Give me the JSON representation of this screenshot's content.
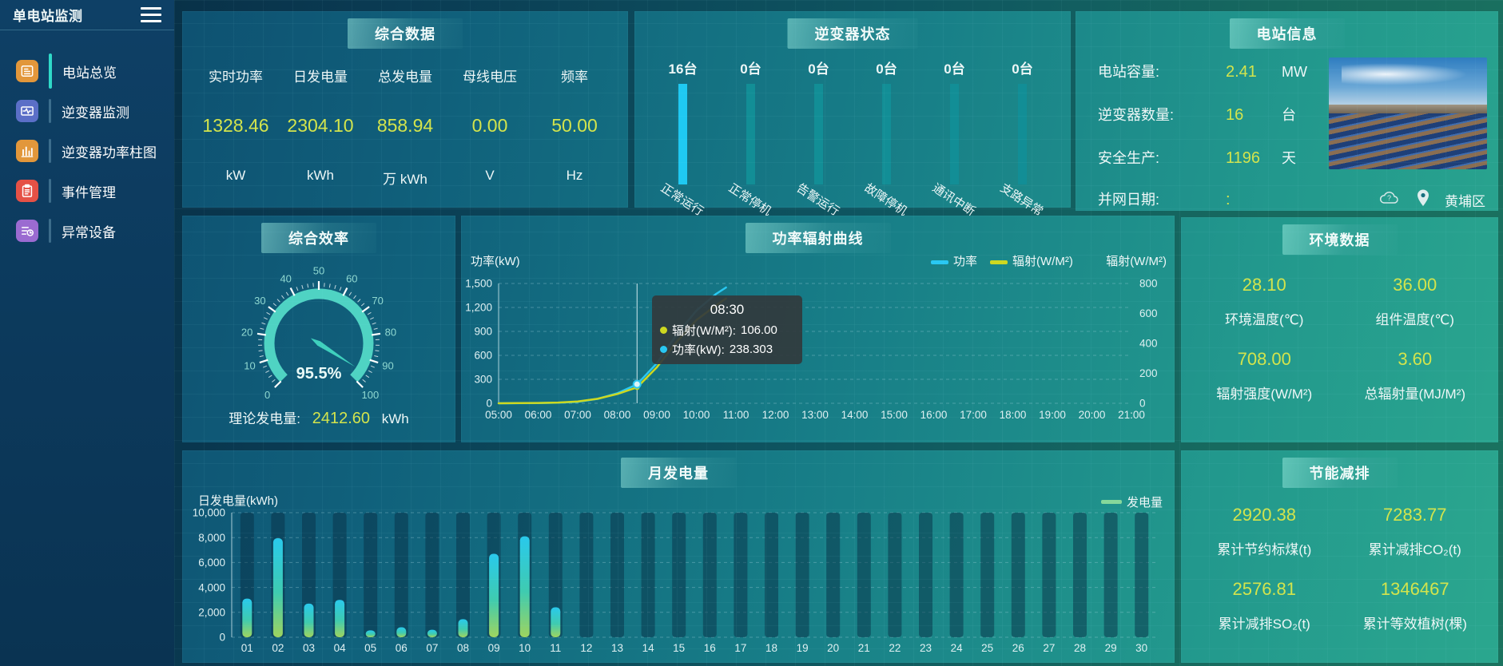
{
  "app": {
    "title": "单电站监测"
  },
  "sidebar": {
    "items": [
      {
        "label": "电站总览",
        "icon": "station-overview-icon",
        "icon_color": "#e2973b",
        "active": true
      },
      {
        "label": "逆变器监测",
        "icon": "inverter-monitor-icon",
        "icon_color": "#5b6fc7",
        "active": false
      },
      {
        "label": "逆变器功率柱图",
        "icon": "inverter-power-bars-icon",
        "icon_color": "#e2973b",
        "active": false
      },
      {
        "label": "事件管理",
        "icon": "event-management-icon",
        "icon_color": "#e55146",
        "active": false
      },
      {
        "label": "异常设备",
        "icon": "abnormal-devices-icon",
        "icon_color": "#9b6bd1",
        "active": false
      }
    ]
  },
  "panels": {
    "summary": {
      "title": "综合数据",
      "metrics": [
        {
          "label": "实时功率",
          "value": "1328.46",
          "unit": "kW"
        },
        {
          "label": "日发电量",
          "value": "2304.10",
          "unit": "kWh"
        },
        {
          "label": "总发电量",
          "value": "858.94",
          "unit": "万 kWh"
        },
        {
          "label": "母线电压",
          "value": "0.00",
          "unit": "V"
        },
        {
          "label": "频率",
          "value": "50.00",
          "unit": "Hz"
        }
      ]
    },
    "inverter_status": {
      "title": "逆变器状态"
    },
    "station_info": {
      "title": "电站信息",
      "rows": [
        {
          "label": "电站容量:",
          "value": "2.41",
          "unit": "MW"
        },
        {
          "label": "逆变器数量:",
          "value": "16",
          "unit": "台"
        },
        {
          "label": "安全生产:",
          "value": "1196",
          "unit": "天"
        },
        {
          "label": "并网日期:",
          "value": ":",
          "unit": ""
        }
      ],
      "location": "黄埔区"
    },
    "efficiency": {
      "title": "综合效率",
      "footer_label": "理论发电量:",
      "footer_value": "2412.60",
      "footer_unit": "kWh"
    },
    "power_radiation": {
      "title": "功率辐射曲线"
    },
    "environment": {
      "title": "环境数据",
      "metrics": [
        {
          "value": "28.10",
          "label": "环境温度(℃)"
        },
        {
          "value": "36.00",
          "label": "组件温度(℃)"
        },
        {
          "value": "708.00",
          "label": "辐射强度(W/M²)"
        },
        {
          "value": "3.60",
          "label": "总辐射量(MJ/M²)"
        }
      ]
    },
    "monthly": {
      "title": "月发电量"
    },
    "energy_saving": {
      "title": "节能减排",
      "metrics": [
        {
          "value": "2920.38",
          "label": "累计节约标煤(t)"
        },
        {
          "value": "7283.77",
          "label": "累计减排CO₂(t)"
        },
        {
          "value": "2576.81",
          "label": "累计减排SO₂(t)"
        },
        {
          "value": "1346467",
          "label": "累计等效植树(棵)"
        }
      ]
    }
  },
  "colors": {
    "accent_value": "#d3e44c",
    "power_line": "#29c8f2",
    "radiation_line": "#cdd820",
    "active_bar": "#1fc9f2",
    "idle_bar": "#128e96",
    "gauge": "#4fd3c3",
    "generation_legend": "#86d89b"
  },
  "chart_data": [
    {
      "type": "bar",
      "title": "逆变器状态",
      "unit": "台",
      "categories": [
        "正常运行",
        "正常停机",
        "告警运行",
        "故障停机",
        "通讯中断",
        "支路异常"
      ],
      "values": [
        16,
        0,
        0,
        0,
        0,
        0
      ],
      "active_color": "#1fc9f2",
      "idle_color": "#128e96"
    },
    {
      "type": "gauge",
      "title": "综合效率",
      "value": 95.5,
      "display": "95.5%",
      "min": 0,
      "max": 100,
      "tick_interval": 10
    },
    {
      "type": "line",
      "title": "功率辐射曲线",
      "ylabel_left": "功率(kW)",
      "ylabel_right": "辐射(W/M²)",
      "ylim_left": [
        0,
        1500
      ],
      "yticks_left": [
        "0",
        "300",
        "600",
        "900",
        "1,200",
        "1,500"
      ],
      "ylim_right": [
        0,
        800
      ],
      "yticks_right": [
        "0",
        "200",
        "400",
        "600",
        "800"
      ],
      "x_ticks": [
        "05:00",
        "06:00",
        "07:00",
        "08:00",
        "09:00",
        "10:00",
        "11:00",
        "12:00",
        "13:00",
        "14:00",
        "15:00",
        "16:00",
        "17:00",
        "18:00",
        "19:00",
        "20:00",
        "21:00"
      ],
      "legend": [
        {
          "name": "功率",
          "color": "#29c8f2"
        },
        {
          "name": "辐射(W/M²)",
          "color": "#cdd820"
        }
      ],
      "series": [
        {
          "name": "功率",
          "axis": "left",
          "unit": "kW",
          "color": "#29c8f2",
          "points": [
            [
              5,
              0
            ],
            [
              5.5,
              1
            ],
            [
              6,
              3
            ],
            [
              6.5,
              8
            ],
            [
              7,
              18
            ],
            [
              7.5,
              55
            ],
            [
              8,
              125
            ],
            [
              8.5,
              238.3
            ],
            [
              9,
              500
            ],
            [
              9.5,
              860
            ],
            [
              10,
              1160
            ],
            [
              10.5,
              1370
            ],
            [
              10.75,
              1450
            ]
          ]
        },
        {
          "name": "辐射(W/M²)",
          "axis": "right",
          "unit": "W/M²",
          "color": "#cdd820",
          "points": [
            [
              5,
              0
            ],
            [
              5.5,
              1
            ],
            [
              6,
              2
            ],
            [
              6.5,
              5
            ],
            [
              7,
              12
            ],
            [
              7.5,
              30
            ],
            [
              8,
              62
            ],
            [
              8.5,
              106
            ],
            [
              9,
              240
            ],
            [
              9.5,
              410
            ],
            [
              10,
              555
            ],
            [
              10.5,
              655
            ],
            [
              10.75,
              700
            ]
          ]
        }
      ],
      "crosshair_hour": 8.5,
      "marker": {
        "hour": 8.5,
        "power": 238.3,
        "radiation": 106
      },
      "tooltip": {
        "time": "08:30",
        "rows": [
          {
            "label": "辐射(W/M²):",
            "value": "106.00",
            "color": "#cdd820"
          },
          {
            "label": "功率(kW):",
            "value": "238.303",
            "color": "#29c8f2"
          }
        ]
      }
    },
    {
      "type": "bar",
      "title": "月发电量",
      "ylabel": "日发电量(kWh)",
      "legend": "发电量",
      "legend_color": "#86d89b",
      "ylim": [
        0,
        10000
      ],
      "yticks": [
        "0",
        "2,000",
        "4,000",
        "6,000",
        "8,000",
        "10,000"
      ],
      "categories": [
        "01",
        "02",
        "03",
        "04",
        "05",
        "06",
        "07",
        "08",
        "09",
        "10",
        "11",
        "12",
        "13",
        "14",
        "15",
        "16",
        "17",
        "18",
        "19",
        "20",
        "21",
        "22",
        "23",
        "24",
        "25",
        "26",
        "27",
        "28",
        "29",
        "30"
      ],
      "values": [
        3100,
        7950,
        2700,
        3000,
        550,
        800,
        600,
        1450,
        6700,
        8100,
        2400,
        0,
        0,
        0,
        0,
        0,
        0,
        0,
        0,
        0,
        0,
        0,
        0,
        0,
        0,
        0,
        0,
        0,
        0,
        0
      ]
    }
  ]
}
